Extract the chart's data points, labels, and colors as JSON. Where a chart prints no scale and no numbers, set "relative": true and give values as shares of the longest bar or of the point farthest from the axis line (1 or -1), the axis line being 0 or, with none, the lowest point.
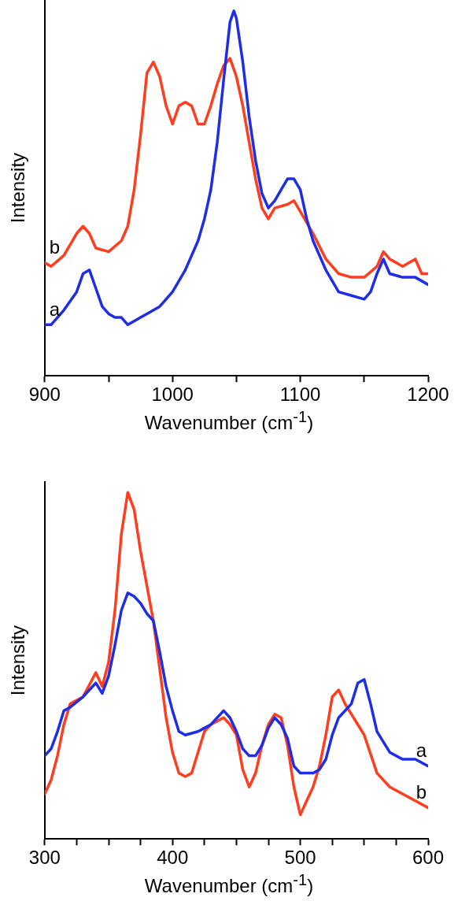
{
  "chart_data": [
    {
      "type": "line",
      "relative": true,
      "xlabel": "Wavenumber (cm$^{-1}$)",
      "ylabel": "Intensity",
      "xlim": [
        900,
        1200
      ],
      "xticks": [
        900,
        {
          "value": 950,
          "label": null
        },
        1000,
        {
          "value": 1050,
          "label": null
        },
        1100,
        {
          "value": 1150,
          "label": null
        },
        1200
      ],
      "grid": false,
      "legend": false,
      "series": [
        {
          "name": "a",
          "color": "#1f2ee6",
          "x": [
            900,
            905,
            915,
            925,
            930,
            935,
            940,
            945,
            950,
            955,
            960,
            965,
            970,
            975,
            980,
            990,
            1000,
            1010,
            1020,
            1025,
            1030,
            1035,
            1040,
            1045,
            1048,
            1050,
            1055,
            1060,
            1065,
            1070,
            1075,
            1080,
            1085,
            1090,
            1095,
            1100,
            1105,
            1110,
            1120,
            1130,
            1140,
            1150,
            1155,
            1160,
            1165,
            1170,
            1180,
            1190,
            1200
          ],
          "values": [
            0.14,
            0.14,
            0.18,
            0.23,
            0.28,
            0.29,
            0.24,
            0.19,
            0.17,
            0.16,
            0.16,
            0.14,
            0.15,
            0.16,
            0.17,
            0.19,
            0.23,
            0.29,
            0.37,
            0.43,
            0.51,
            0.64,
            0.81,
            0.97,
            1,
            0.98,
            0.86,
            0.71,
            0.59,
            0.5,
            0.46,
            0.48,
            0.51,
            0.54,
            0.54,
            0.51,
            0.43,
            0.37,
            0.29,
            0.23,
            0.22,
            0.21,
            0.23,
            0.28,
            0.32,
            0.28,
            0.27,
            0.27,
            0.25
          ]
        },
        {
          "name": "b",
          "color": "#ff3d1f",
          "x": [
            900,
            905,
            915,
            925,
            930,
            935,
            940,
            950,
            960,
            965,
            970,
            975,
            980,
            985,
            990,
            995,
            1000,
            1005,
            1010,
            1015,
            1020,
            1025,
            1030,
            1035,
            1040,
            1045,
            1050,
            1055,
            1060,
            1065,
            1070,
            1075,
            1080,
            1090,
            1095,
            1100,
            1110,
            1120,
            1130,
            1140,
            1150,
            1160,
            1165,
            1170,
            1180,
            1190,
            1195,
            1200
          ],
          "values": [
            0.31,
            0.3,
            0.33,
            0.39,
            0.41,
            0.39,
            0.35,
            0.34,
            0.37,
            0.41,
            0.51,
            0.66,
            0.83,
            0.86,
            0.82,
            0.74,
            0.69,
            0.74,
            0.75,
            0.74,
            0.69,
            0.69,
            0.74,
            0.8,
            0.85,
            0.87,
            0.82,
            0.74,
            0.64,
            0.54,
            0.46,
            0.43,
            0.46,
            0.47,
            0.48,
            0.45,
            0.39,
            0.32,
            0.28,
            0.27,
            0.27,
            0.3,
            0.34,
            0.32,
            0.3,
            0.32,
            0.28,
            0.28
          ]
        }
      ]
    },
    {
      "type": "line",
      "relative": true,
      "xlabel": "Wavenumber (cm$^{-1}$)",
      "ylabel": "Intensity",
      "xlim": [
        300,
        600
      ],
      "xticks": [
        300,
        {
          "value": 325,
          "label": null
        },
        {
          "value": 350,
          "label": null
        },
        {
          "value": 375,
          "label": null
        },
        400,
        {
          "value": 425,
          "label": null
        },
        {
          "value": 450,
          "label": null
        },
        {
          "value": 475,
          "label": null
        },
        500,
        {
          "value": 525,
          "label": null
        },
        {
          "value": 550,
          "label": null
        },
        {
          "value": 575,
          "label": null
        },
        600
      ],
      "grid": false,
      "legend": false,
      "series": [
        {
          "name": "a",
          "color": "#1f2ee6",
          "x": [
            300,
            305,
            310,
            315,
            320,
            330,
            340,
            345,
            350,
            355,
            360,
            365,
            370,
            375,
            380,
            385,
            390,
            395,
            400,
            405,
            410,
            420,
            425,
            430,
            440,
            445,
            450,
            455,
            460,
            465,
            470,
            475,
            480,
            485,
            490,
            495,
            500,
            510,
            515,
            520,
            525,
            530,
            540,
            545,
            550,
            555,
            560,
            570,
            580,
            590,
            600
          ],
          "values": [
            0.24,
            0.26,
            0.31,
            0.37,
            0.38,
            0.41,
            0.45,
            0.42,
            0.47,
            0.56,
            0.66,
            0.71,
            0.7,
            0.68,
            0.65,
            0.63,
            0.54,
            0.44,
            0.37,
            0.31,
            0.3,
            0.31,
            0.32,
            0.33,
            0.37,
            0.35,
            0.31,
            0.26,
            0.24,
            0.24,
            0.27,
            0.32,
            0.35,
            0.33,
            0.29,
            0.21,
            0.19,
            0.19,
            0.2,
            0.23,
            0.3,
            0.35,
            0.39,
            0.45,
            0.46,
            0.39,
            0.31,
            0.25,
            0.23,
            0.23,
            0.21
          ]
        },
        {
          "name": "b",
          "color": "#ff3d1f",
          "x": [
            300,
            305,
            310,
            315,
            320,
            330,
            340,
            345,
            350,
            355,
            360,
            365,
            370,
            375,
            380,
            385,
            390,
            395,
            400,
            405,
            410,
            415,
            420,
            425,
            430,
            440,
            445,
            450,
            455,
            460,
            465,
            470,
            475,
            480,
            485,
            490,
            495,
            500,
            505,
            510,
            515,
            520,
            525,
            530,
            535,
            540,
            545,
            550,
            560,
            570,
            580,
            590,
            600
          ],
          "values": [
            0.13,
            0.17,
            0.24,
            0.33,
            0.39,
            0.41,
            0.48,
            0.44,
            0.51,
            0.66,
            0.88,
            1,
            0.95,
            0.83,
            0.73,
            0.63,
            0.49,
            0.35,
            0.25,
            0.19,
            0.18,
            0.19,
            0.25,
            0.31,
            0.33,
            0.35,
            0.33,
            0.3,
            0.2,
            0.15,
            0.19,
            0.27,
            0.33,
            0.36,
            0.35,
            0.27,
            0.15,
            0.07,
            0.11,
            0.15,
            0.21,
            0.3,
            0.41,
            0.43,
            0.39,
            0.36,
            0.33,
            0.3,
            0.19,
            0.15,
            0.13,
            0.11,
            0.09
          ]
        }
      ]
    }
  ]
}
